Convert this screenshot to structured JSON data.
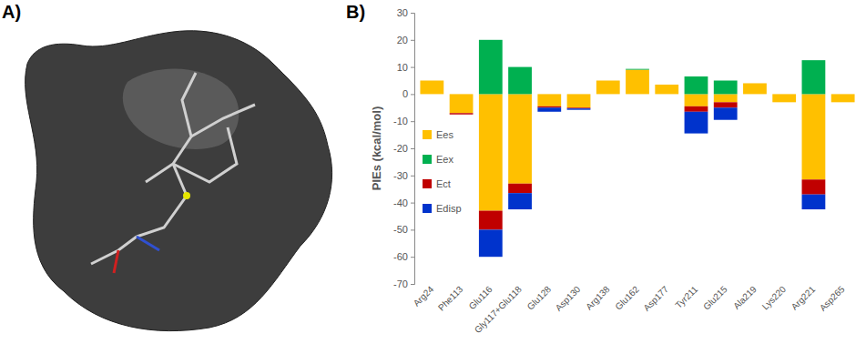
{
  "chart_data": {
    "type": "bar",
    "stacked": true,
    "annotations": [
      {
        "text": "A)"
      },
      {
        "text": "B)"
      }
    ],
    "y_label": "PIEs (kcal/mol)",
    "categories": [
      "Arg24",
      "Phe113",
      "Glu116",
      "Gly117+Glu118",
      "Glu128",
      "Asp130",
      "Arg138",
      "Glu162",
      "Asp177",
      "Tyr211",
      "Glu215",
      "Ala219",
      "Lys220",
      "Arg221",
      "Asp265"
    ],
    "series": [
      {
        "name": "Ees",
        "color": "#ffc000",
        "values": [
          5,
          -7,
          -43,
          -33,
          -4.5,
          -5,
          5,
          9,
          3.5,
          -4.5,
          -3,
          4,
          -3,
          -31.5,
          -3
        ]
      },
      {
        "name": "Eex",
        "color": "#00b050",
        "values": [
          0,
          0,
          20,
          10,
          0,
          0,
          0,
          0.3,
          0,
          6.5,
          5,
          0,
          0,
          12.5,
          0
        ]
      },
      {
        "name": "Ect",
        "color": "#c00000",
        "values": [
          0,
          -0.5,
          -7,
          -3.5,
          -0.5,
          -0.3,
          0,
          0,
          0,
          -2,
          -2,
          0,
          0,
          -5.5,
          0
        ]
      },
      {
        "name": "Edisp",
        "color": "#0033cc",
        "values": [
          0,
          0,
          -10,
          -6,
          -1.5,
          -0.5,
          0,
          0,
          0,
          -8,
          -4.5,
          0,
          0,
          -5.5,
          0
        ]
      }
    ],
    "ylim": [
      -70,
      30
    ],
    "yticks": [
      -70,
      -60,
      -50,
      -40,
      -30,
      -20,
      -10,
      0,
      10,
      20,
      30
    ],
    "legend": "left"
  }
}
